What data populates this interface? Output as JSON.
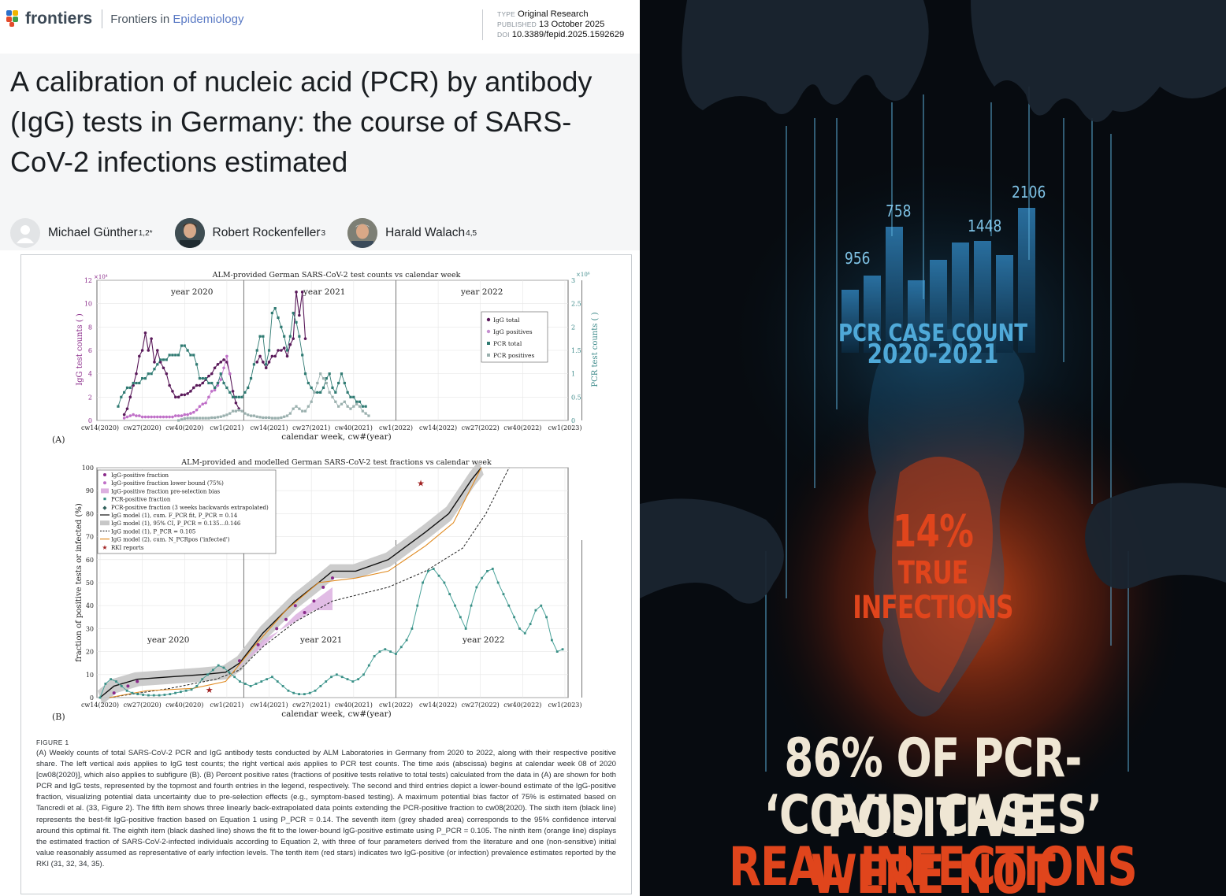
{
  "header": {
    "logo_text": "frontiers",
    "journal_prefix": "Frontiers in ",
    "journal_name": "Epidemiology",
    "type_key": "TYPE",
    "type_value": "Original Research",
    "published_key": "PUBLISHED",
    "published_value": "13 October 2025",
    "doi_key": "DOI",
    "doi_value": "10.3389/fepid.2025.1592629"
  },
  "article": {
    "title_line1": "A calibration of nucleic acid (PCR) by antibody",
    "title_line2": "(IgG) tests in Germany: the course of SARS-",
    "title_line3": "CoV-2 infections estimated",
    "authors": [
      {
        "name": "Michael Günther",
        "aff": "1,2*"
      },
      {
        "name": "Robert Rockenfeller",
        "aff": "3"
      },
      {
        "name": "Harald Walach",
        "aff": "4,5"
      }
    ]
  },
  "figure": {
    "panel_a": {
      "title": "ALM-provided German SARS-CoV-2 test counts vs calendar week",
      "ylabel_left": "IgG test counts ( )",
      "ylabel_right": "PCR test counts ( )",
      "left_scale": "×10⁴",
      "right_scale": "×10⁶",
      "xlabel": "calendar week, cw#(year)",
      "tag": "(A)",
      "years": [
        "year 2020",
        "year 2021",
        "year 2022"
      ],
      "legend": [
        "IgG total",
        "IgG positives",
        "PCR total",
        "PCR positives"
      ]
    },
    "panel_b": {
      "title": "ALM-provided and modelled German SARS-CoV-2 test fractions vs calendar week",
      "ylabel": "fraction of positive tests or infected (%)",
      "xlabel": "calendar week, cw#(year)",
      "tag": "(B)",
      "years": [
        "year 2020",
        "year 2021",
        "year 2022"
      ],
      "legend": [
        "IgG-positive fraction",
        "IgG-positive fraction lower bound (75%)",
        "IgG-positive fraction pre-selection bias",
        "PCR-positive fraction",
        "PCR-positive fraction (3 weeks backwards extrapolated)",
        "IgG model (1), cum. F_PCR fit, P_PCR = 0.14",
        "IgG model (1), 95% CI, P_PCR = 0.135...0.146",
        "IgG model (1), P_PCR = 0.105",
        "IgG model (2), cum. N_PCRpos ('infected')",
        "RKI reports"
      ]
    },
    "x_ticks": [
      "cw14(2020)",
      "cw27(2020)",
      "cw40(2020)",
      "cw1(2021)",
      "cw14(2021)",
      "cw27(2021)",
      "cw40(2021)",
      "cw1(2022)",
      "cw14(2022)",
      "cw27(2022)",
      "cw40(2022)",
      "cw1(2023)"
    ],
    "caption_label": "FIGURE 1",
    "caption": "(A) Weekly counts of total SARS-CoV-2 PCR and IgG antibody tests conducted by ALM Laboratories in Germany from 2020 to 2022, along with their respective positive share. The left vertical axis applies to IgG test counts; the right vertical axis applies to PCR test counts. The time axis (abscissa) begins at calendar week 08 of 2020 [cw08(2020)], which also applies to subfigure (B). (B) Percent positive rates (fractions of positive tests relative to total tests) calculated from the data in (A) are shown for both PCR and IgG tests, represented by the topmost and fourth entries in the legend, respectively. The second and third entries depict a lower-bound estimate of the IgG-positive fraction, visualizing potential data uncertainty due to pre-selection effects (e.g., symptom-based testing). A maximum potential bias factor of 75% is estimated based on Tancredi et al. (33, Figure 2). The fifth item shows three linearly back-extrapolated data points extending the PCR-positive fraction to cw08(2020). The sixth item (black line) represents the best-fit IgG-positive fraction based on Equation 1 using P_PCR = 0.14. The seventh item (grey shaded area) corresponds to the 95% confidence interval around this optimal fit. The eighth item (black dashed line) shows the fit to the lower-bound IgG-positive estimate using P_PCR = 0.105. The ninth item (orange line) displays the estimated fraction of SARS-CoV-2-infected individuals according to Equation 2, with three of four parameters derived from the literature and one (non-sensitive) initial value reasonably assumed as representative of early infection levels. The tenth item (red stars) indicates two IgG-positive (or infection) prevalence estimates reported by the RKI (31, 32, 34, 35)."
  },
  "poster": {
    "bar_labels": [
      "956",
      "758",
      "1448",
      "2106"
    ],
    "pcr_line1": "PCR CASE COUNT",
    "pcr_line2": "2020-2021",
    "pct": "14%",
    "true_line1": "TRUE",
    "true_line2": "INFECTIONS",
    "headline_line1": "86% OF PCR-POSITIVE",
    "headline_line2a": "‘COVID CASES’",
    "headline_line2b": " WERE NOT",
    "headline_line3": "REAL INFECTIONS",
    "colors": {
      "blue": "#4fa9d8",
      "orange": "#e0451c",
      "cream": "#efe6d4"
    }
  }
}
